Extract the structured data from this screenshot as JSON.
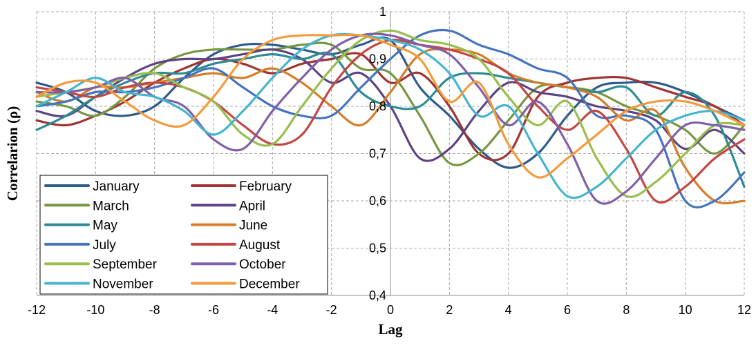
{
  "chart_data": {
    "type": "line",
    "title": "",
    "xlabel": "Lag",
    "ylabel": "Correlarion (ρ)",
    "xlim": [
      -12,
      12
    ],
    "ylim": [
      0.4,
      1
    ],
    "x_ticks": [
      "-12",
      "-10",
      "-8",
      "-6",
      "-4",
      "-2",
      "0",
      "2",
      "4",
      "6",
      "8",
      "10",
      "12"
    ],
    "y_ticks": [
      "0,4",
      "0,5",
      "0,6",
      "0,7",
      "0,8",
      "0,9",
      "1"
    ],
    "grid": true,
    "legend_position": "bottom-left",
    "x": [
      -12,
      -11,
      -10,
      -9,
      -8,
      -7,
      -6,
      -5,
      -4,
      -3,
      -2,
      -1,
      0,
      1,
      2,
      3,
      4,
      5,
      6,
      7,
      8,
      9,
      10,
      11,
      12
    ],
    "series": [
      {
        "name": "January",
        "color": "#2F5A8C",
        "values": [
          0.85,
          0.83,
          0.79,
          0.78,
          0.8,
          0.86,
          0.91,
          0.93,
          0.93,
          0.92,
          0.91,
          0.93,
          0.94,
          0.84,
          0.78,
          0.71,
          0.67,
          0.7,
          0.78,
          0.84,
          0.85,
          0.85,
          0.83,
          0.8,
          0.77
        ]
      },
      {
        "name": "February",
        "color": "#9E3532",
        "values": [
          0.77,
          0.76,
          0.78,
          0.81,
          0.85,
          0.88,
          0.9,
          0.89,
          0.87,
          0.89,
          0.9,
          0.91,
          0.85,
          0.87,
          0.8,
          0.7,
          0.7,
          0.82,
          0.85,
          0.86,
          0.86,
          0.84,
          0.82,
          0.8,
          0.76
        ]
      },
      {
        "name": "March",
        "color": "#779641",
        "values": [
          0.81,
          0.8,
          0.78,
          0.82,
          0.88,
          0.91,
          0.92,
          0.92,
          0.92,
          0.93,
          0.93,
          0.88,
          0.87,
          0.78,
          0.68,
          0.7,
          0.77,
          0.84,
          0.84,
          0.83,
          0.8,
          0.78,
          0.75,
          0.7,
          0.76
        ]
      },
      {
        "name": "April",
        "color": "#5E4384",
        "values": [
          0.79,
          0.78,
          0.82,
          0.86,
          0.89,
          0.9,
          0.9,
          0.91,
          0.92,
          0.9,
          0.85,
          0.87,
          0.8,
          0.69,
          0.71,
          0.79,
          0.85,
          0.83,
          0.82,
          0.8,
          0.79,
          0.77,
          0.71,
          0.75,
          0.7
        ]
      },
      {
        "name": "May",
        "color": "#2D8B96",
        "values": [
          0.75,
          0.78,
          0.82,
          0.85,
          0.87,
          0.87,
          0.89,
          0.9,
          0.91,
          0.9,
          0.91,
          0.83,
          0.8,
          0.8,
          0.86,
          0.87,
          0.86,
          0.85,
          0.84,
          0.83,
          0.84,
          0.78,
          0.83,
          0.78,
          0.63
        ]
      },
      {
        "name": "June",
        "color": "#D47E2A",
        "values": [
          0.83,
          0.81,
          0.84,
          0.84,
          0.85,
          0.86,
          0.87,
          0.86,
          0.88,
          0.85,
          0.8,
          0.76,
          0.83,
          0.91,
          0.92,
          0.91,
          0.87,
          0.85,
          0.84,
          0.82,
          0.77,
          0.79,
          0.67,
          0.6,
          0.6
        ]
      },
      {
        "name": "July",
        "color": "#4674BC",
        "values": [
          0.8,
          0.81,
          0.83,
          0.83,
          0.84,
          0.86,
          0.88,
          0.84,
          0.8,
          0.78,
          0.78,
          0.84,
          0.9,
          0.95,
          0.96,
          0.93,
          0.91,
          0.88,
          0.86,
          0.78,
          0.78,
          0.75,
          0.6,
          0.6,
          0.66
        ]
      },
      {
        "name": "August",
        "color": "#C24744",
        "values": [
          0.84,
          0.83,
          0.82,
          0.84,
          0.85,
          0.84,
          0.81,
          0.76,
          0.72,
          0.74,
          0.84,
          0.91,
          0.94,
          0.93,
          0.92,
          0.9,
          0.87,
          0.8,
          0.75,
          0.79,
          0.71,
          0.6,
          0.63,
          0.69,
          0.73
        ]
      },
      {
        "name": "September",
        "color": "#98BE4D",
        "values": [
          0.82,
          0.83,
          0.84,
          0.86,
          0.87,
          0.84,
          0.81,
          0.74,
          0.72,
          0.8,
          0.88,
          0.94,
          0.96,
          0.94,
          0.93,
          0.9,
          0.82,
          0.76,
          0.81,
          0.69,
          0.61,
          0.64,
          0.7,
          0.76,
          0.76
        ]
      },
      {
        "name": "October",
        "color": "#8060A8",
        "values": [
          0.83,
          0.83,
          0.84,
          0.86,
          0.82,
          0.8,
          0.73,
          0.71,
          0.79,
          0.86,
          0.92,
          0.95,
          0.95,
          0.93,
          0.91,
          0.84,
          0.76,
          0.81,
          0.72,
          0.6,
          0.62,
          0.69,
          0.76,
          0.76,
          0.75
        ]
      },
      {
        "name": "November",
        "color": "#45B5CF",
        "values": [
          0.8,
          0.83,
          0.86,
          0.83,
          0.82,
          0.79,
          0.74,
          0.79,
          0.86,
          0.92,
          0.95,
          0.95,
          0.94,
          0.92,
          0.87,
          0.78,
          0.8,
          0.7,
          0.61,
          0.63,
          0.69,
          0.75,
          0.78,
          0.79,
          0.77
        ]
      },
      {
        "name": "December",
        "color": "#F59A3C",
        "values": [
          0.82,
          0.85,
          0.85,
          0.81,
          0.77,
          0.76,
          0.82,
          0.9,
          0.94,
          0.95,
          0.95,
          0.95,
          0.93,
          0.9,
          0.81,
          0.85,
          0.72,
          0.65,
          0.69,
          0.74,
          0.79,
          0.81,
          0.81,
          0.79,
          0.76
        ]
      }
    ]
  }
}
